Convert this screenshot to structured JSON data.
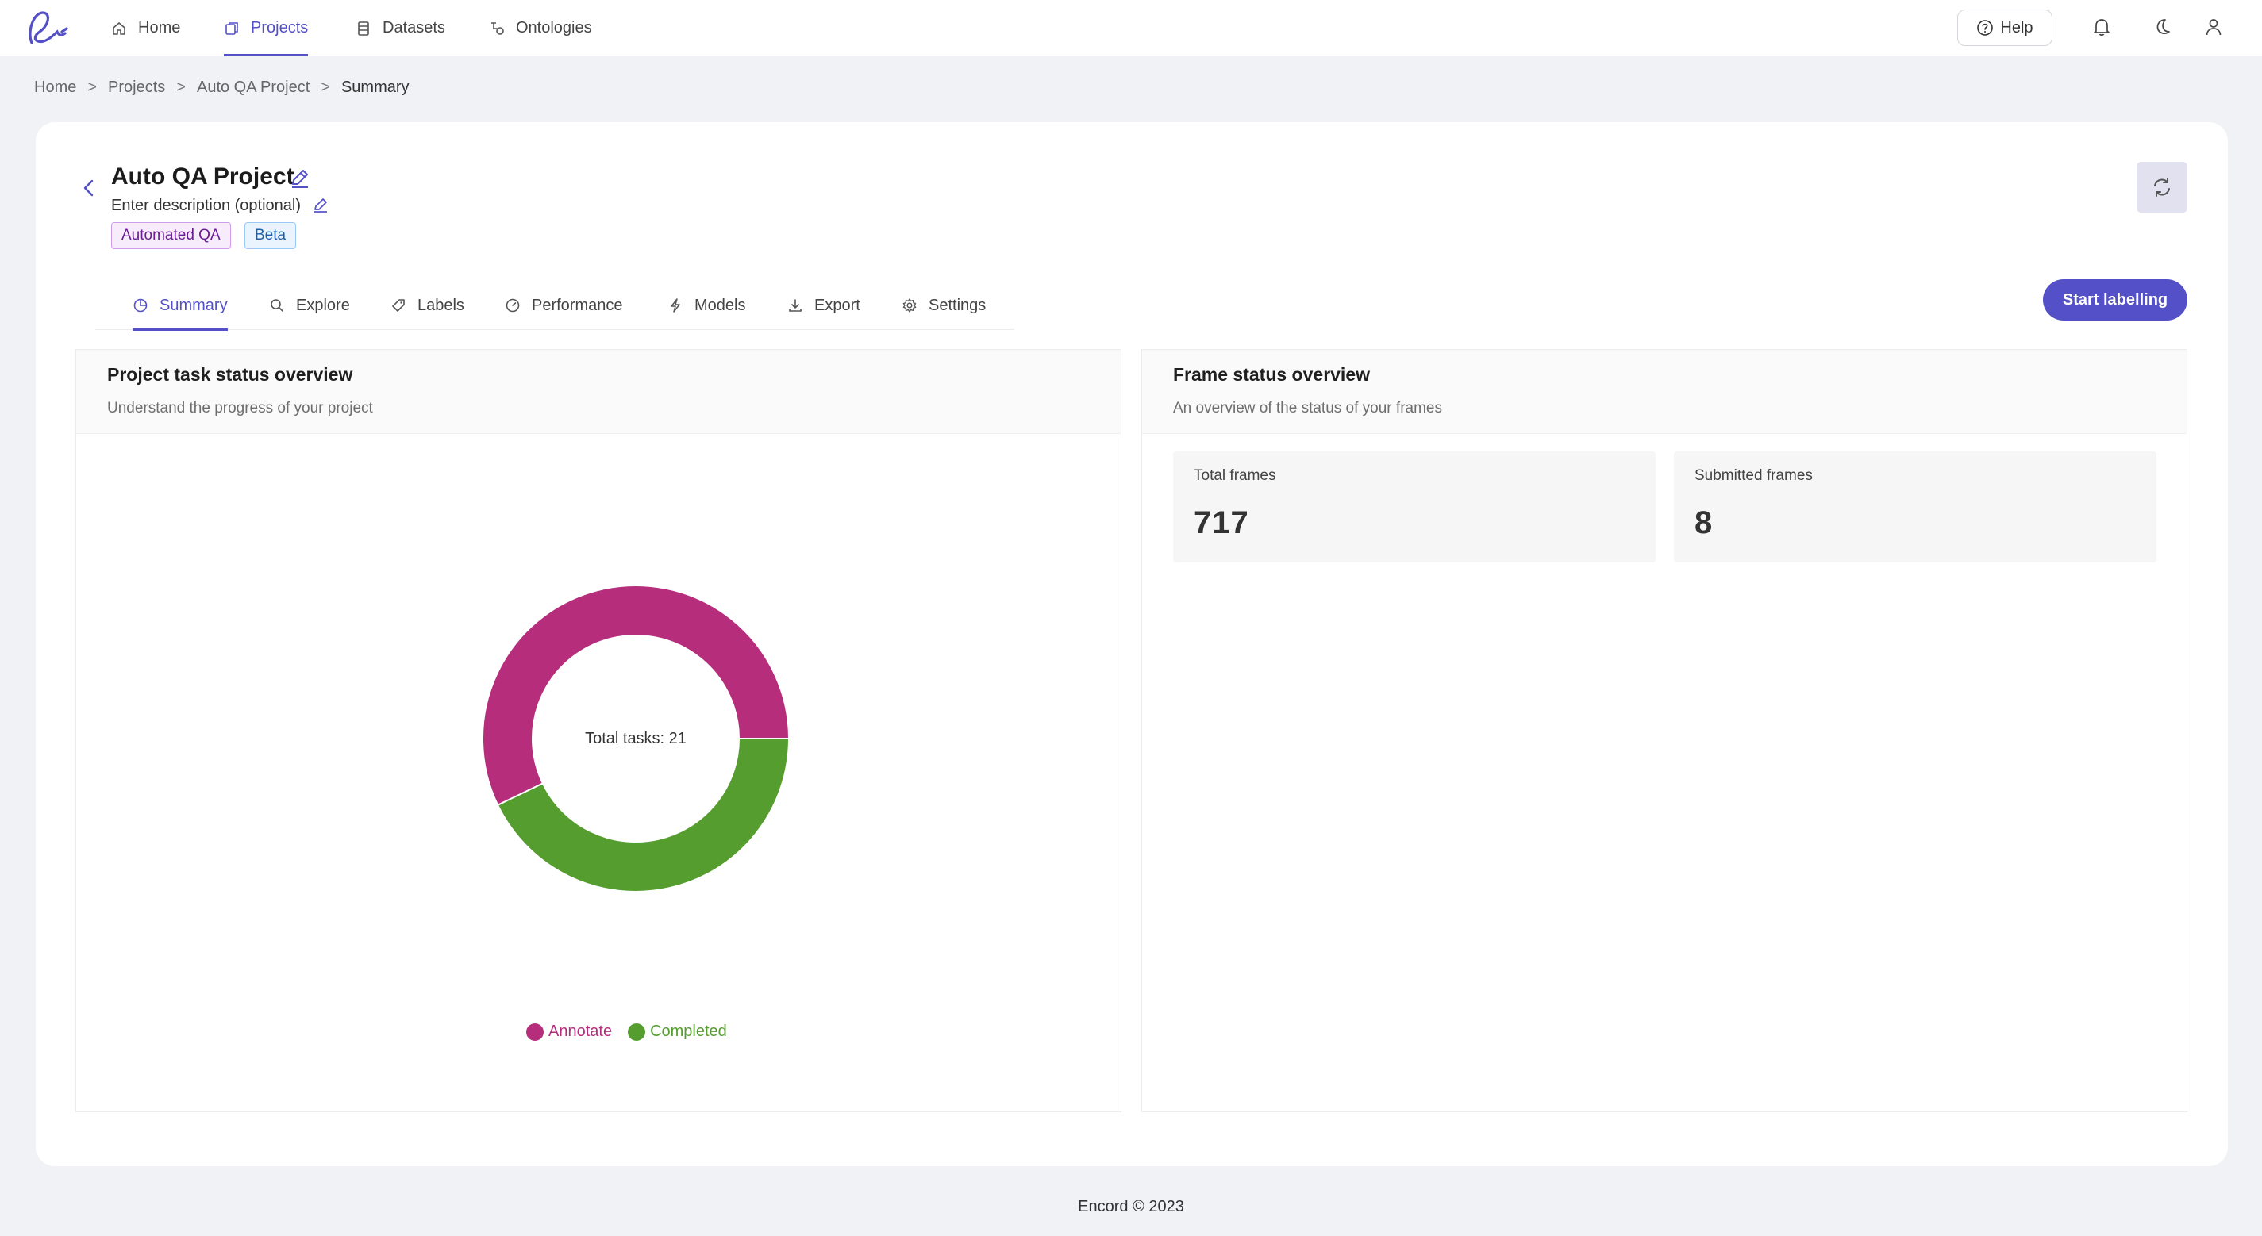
{
  "nav": {
    "items": [
      {
        "label": "Home",
        "icon": "home-icon"
      },
      {
        "label": "Projects",
        "icon": "projects-icon",
        "active": true
      },
      {
        "label": "Datasets",
        "icon": "datasets-icon"
      },
      {
        "label": "Ontologies",
        "icon": "ontologies-icon"
      }
    ],
    "help_label": "Help"
  },
  "breadcrumb": [
    "Home",
    "Projects",
    "Auto QA Project",
    "Summary"
  ],
  "breadcrumb_sep": ">",
  "project": {
    "title": "Auto QA Project",
    "description_placeholder": "Enter description (optional)",
    "tags": [
      "Automated QA",
      "Beta"
    ]
  },
  "tabs": [
    {
      "label": "Summary",
      "icon": "pie-chart-icon",
      "active": true
    },
    {
      "label": "Explore",
      "icon": "search-icon"
    },
    {
      "label": "Labels",
      "icon": "tag-icon"
    },
    {
      "label": "Performance",
      "icon": "gauge-icon"
    },
    {
      "label": "Models",
      "icon": "lightning-icon"
    },
    {
      "label": "Export",
      "icon": "download-icon"
    },
    {
      "label": "Settings",
      "icon": "gear-icon"
    }
  ],
  "start_button": "Start labelling",
  "task_panel": {
    "title": "Project task status overview",
    "subtitle": "Understand the progress of your project",
    "center_label": "Total tasks: 21"
  },
  "frame_panel": {
    "title": "Frame status overview",
    "subtitle": "An overview of the status of your frames",
    "stats": [
      {
        "label": "Total frames",
        "value": "717"
      },
      {
        "label": "Submitted frames",
        "value": "8"
      }
    ]
  },
  "chart_data": {
    "type": "pie",
    "title": "",
    "total": 21,
    "series": [
      {
        "name": "Annotate",
        "value": 12,
        "color": "#b52d7b"
      },
      {
        "name": "Completed",
        "value": 9,
        "color": "#549d2e"
      }
    ],
    "legend_position": "bottom"
  },
  "footer": "Encord © 2023",
  "colors": {
    "accent": "#5350c8",
    "annotate": "#b52d7b",
    "completed": "#549d2e"
  }
}
